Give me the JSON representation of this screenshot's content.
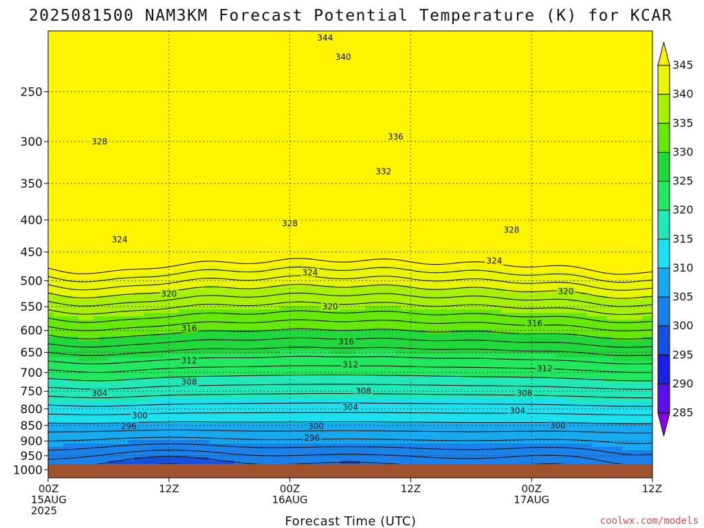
{
  "title": "2025081500 NAM3KM Forecast Potential Temperature (K) for KCAR",
  "credit": "coolwx.com/models",
  "colors": {
    "ground": "#a0522d",
    "bands": [
      "#8a00ee",
      "#5a10ee",
      "#1a20e6",
      "#1550e0",
      "#1a80ea",
      "#18aaf0",
      "#1ce0ee",
      "#22e8b8",
      "#22e860",
      "#20d83c",
      "#66e80a",
      "#a8f00a",
      "#e8f400",
      "#fff400"
    ]
  },
  "chart_data": {
    "type": "heatmap",
    "title": "2025081500 NAM3KM Forecast Potential Temperature (K) for KCAR",
    "xlabel": "Forecast Time (UTC)",
    "ylabel": "",
    "x_ticks": [
      {
        "hour": 0,
        "labels": [
          "00Z",
          "15AUG",
          "2025"
        ]
      },
      {
        "hour": 12,
        "labels": [
          "12Z"
        ]
      },
      {
        "hour": 24,
        "labels": [
          "00Z",
          "16AUG"
        ]
      },
      {
        "hour": 36,
        "labels": [
          "12Z"
        ]
      },
      {
        "hour": 48,
        "labels": [
          "00Z",
          "17AUG"
        ]
      },
      {
        "hour": 60,
        "labels": [
          "12Z"
        ]
      }
    ],
    "xlim": [
      0,
      60
    ],
    "y_axis": "pressure (log), inverted",
    "ylim": [
      1030,
      200
    ],
    "y_ticks": [
      250,
      300,
      350,
      400,
      450,
      500,
      550,
      600,
      650,
      700,
      750,
      800,
      850,
      900,
      950,
      1000
    ],
    "grid": true,
    "colorbar": {
      "position": "right",
      "levels": [
        285,
        290,
        295,
        300,
        305,
        310,
        315,
        320,
        325,
        330,
        335,
        340,
        345
      ],
      "labels": [
        "285",
        "290",
        "295",
        "300",
        "305",
        "310",
        "315",
        "320",
        "325",
        "330",
        "335",
        "340",
        "345"
      ]
    },
    "contour_interval": 2,
    "contour_labels": [
      {
        "text": "344",
        "hour": 27.5,
        "p": 205
      },
      {
        "text": "340",
        "hour": 29.3,
        "p": 220
      },
      {
        "text": "336",
        "hour": 34.5,
        "p": 295
      },
      {
        "text": "332",
        "hour": 33.3,
        "p": 335
      },
      {
        "text": "328",
        "hour": 5.1,
        "p": 300
      },
      {
        "text": "328",
        "hour": 24.0,
        "p": 405
      },
      {
        "text": "328",
        "hour": 46.0,
        "p": 415
      },
      {
        "text": "324",
        "hour": 7.1,
        "p": 430
      },
      {
        "text": "324",
        "hour": 26.0,
        "p": 485
      },
      {
        "text": "324",
        "hour": 44.3,
        "p": 465
      },
      {
        "text": "320",
        "hour": 12.0,
        "p": 525
      },
      {
        "text": "320",
        "hour": 28.0,
        "p": 550
      },
      {
        "text": "320",
        "hour": 51.4,
        "p": 520
      },
      {
        "text": "316",
        "hour": 14.0,
        "p": 595
      },
      {
        "text": "316",
        "hour": 29.6,
        "p": 625
      },
      {
        "text": "316",
        "hour": 48.3,
        "p": 585
      },
      {
        "text": "312",
        "hour": 14.0,
        "p": 670
      },
      {
        "text": "312",
        "hour": 30.0,
        "p": 680
      },
      {
        "text": "312",
        "hour": 49.3,
        "p": 690
      },
      {
        "text": "308",
        "hour": 14.0,
        "p": 725
      },
      {
        "text": "308",
        "hour": 31.3,
        "p": 750
      },
      {
        "text": "308",
        "hour": 47.3,
        "p": 755
      },
      {
        "text": "304",
        "hour": 5.1,
        "p": 755
      },
      {
        "text": "304",
        "hour": 30.0,
        "p": 795
      },
      {
        "text": "304",
        "hour": 46.6,
        "p": 805
      },
      {
        "text": "300",
        "hour": 9.1,
        "p": 820
      },
      {
        "text": "300",
        "hour": 26.6,
        "p": 852
      },
      {
        "text": "300",
        "hour": 50.6,
        "p": 850
      },
      {
        "text": "296",
        "hour": 8.0,
        "p": 852
      },
      {
        "text": "296",
        "hour": 26.2,
        "p": 890
      }
    ],
    "lowest_values_near_surface": {
      "hour": 12,
      "value_range": [
        288,
        291
      ]
    }
  }
}
